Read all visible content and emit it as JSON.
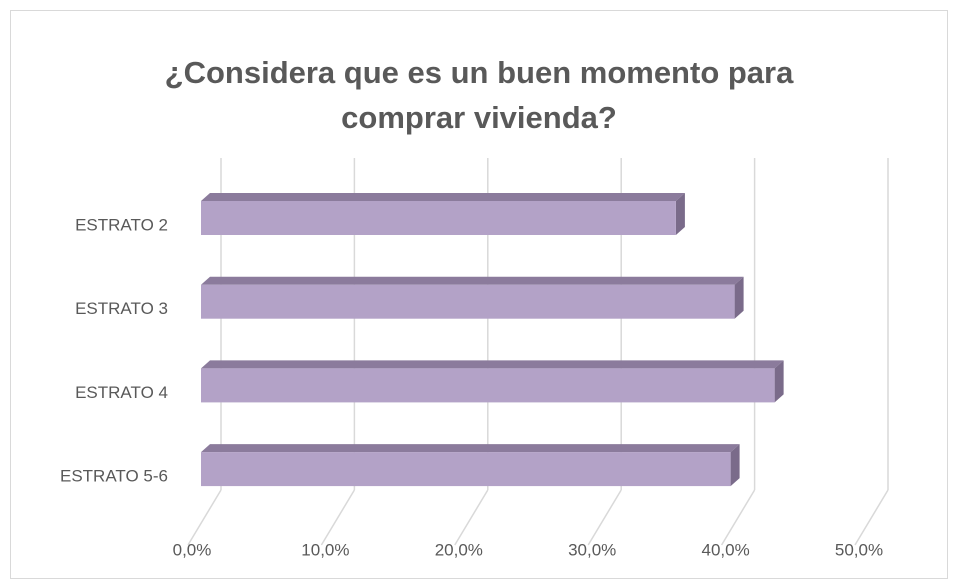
{
  "chart_data": {
    "type": "bar3d_horizontal",
    "title": "¿Considera que es un buen momento para comprar vivienda?",
    "categories": [
      "ESTRATO 2",
      "ESTRATO 3",
      "ESTRATO 4",
      "ESTRATO 5-6"
    ],
    "values": [
      35.6,
      40.0,
      43.0,
      39.7
    ],
    "color": "#b3a2c7",
    "xlim": [
      0,
      50
    ],
    "xticks": [
      {
        "value": 0,
        "label": "0,0%"
      },
      {
        "value": 10,
        "label": "10,0%"
      },
      {
        "value": 20,
        "label": "20,0%"
      },
      {
        "value": 30,
        "label": "30,0%"
      },
      {
        "value": 40,
        "label": "40,0%"
      },
      {
        "value": 50,
        "label": "50,0%"
      }
    ],
    "grid": true
  }
}
